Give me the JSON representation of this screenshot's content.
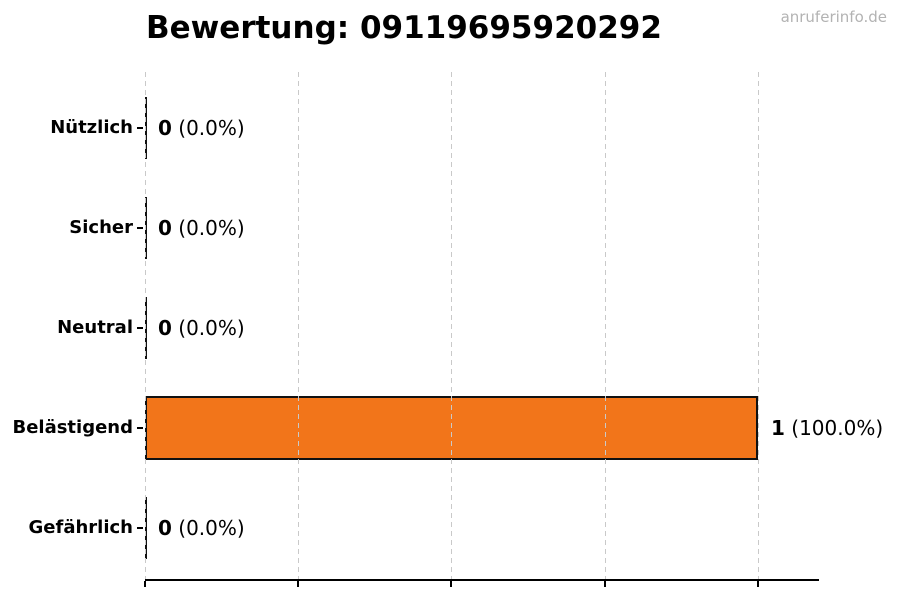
{
  "chart_data": {
    "type": "bar",
    "orientation": "horizontal",
    "title": "Bewertung: 09119695920292",
    "watermark": "anruferinfo.de",
    "categories": [
      "Nützlich",
      "Sicher",
      "Neutral",
      "Belästigend",
      "Gefährlich"
    ],
    "values": [
      0,
      0,
      0,
      1,
      0
    ],
    "value_labels": [
      {
        "count": "0",
        "pct": "(0.0%)"
      },
      {
        "count": "0",
        "pct": "(0.0%)"
      },
      {
        "count": "0",
        "pct": "(0.0%)"
      },
      {
        "count": "1",
        "pct": "(100.0%)"
      },
      {
        "count": "0",
        "pct": "(0.0%)"
      }
    ],
    "xlim": [
      0,
      1.1
    ],
    "xticks": [
      0,
      0.25,
      0.5,
      0.75,
      1.0
    ],
    "x_tick_labels_visible": false,
    "grid": "dashed-vertical",
    "legend": null,
    "colors": {
      "bar_fill": "#F2751A",
      "bar_edge": "#111111",
      "grid": "#C9C9C9",
      "axis": "#000000",
      "text": "#000000",
      "watermark": "#B3B3B3"
    }
  }
}
